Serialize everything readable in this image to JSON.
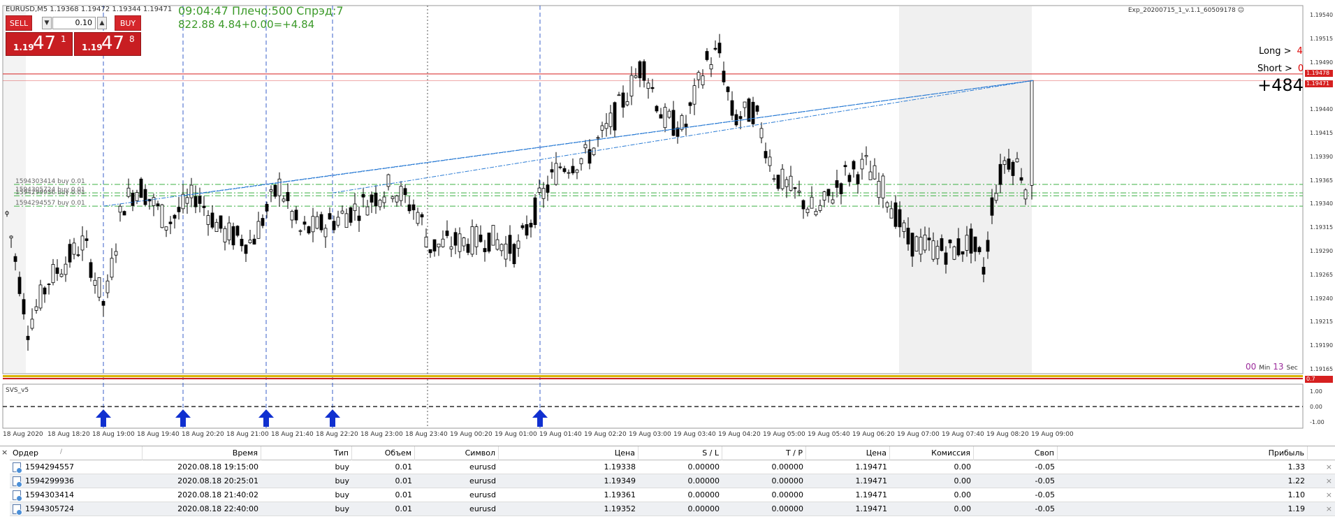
{
  "symbol_header": "EURUSD,M5  1.19368 1.19472 1.19344 1.19471",
  "trade_panel": {
    "sell_label": "SELL",
    "buy_label": "BUY",
    "lot_value": "0.10",
    "sell_price_small": "1.19",
    "sell_price_big": "47",
    "sell_price_sup": "1",
    "buy_price_small": "1.19",
    "buy_price_big": "47",
    "buy_price_sup": "8"
  },
  "info": {
    "line1": "09:04:47 Плечо:500 Спрэд:7",
    "line2": "822.88     4.84+0.00=+4.84"
  },
  "expert_name": "Exp_20200715_1_v.1.1_60509178 ☺",
  "long_label": "Long >",
  "long_count": "4",
  "short_label": "Short >",
  "short_count": "0",
  "total_profit": "+484",
  "timer": {
    "min_value": "00",
    "min_label": "Min",
    "sec_value": "13",
    "sec_label": "Sec"
  },
  "indicator_label": "SVS_v5",
  "order_labels": [
    "1594303414 buy 0.01",
    "1594305724 buy 0.01",
    "1594299936 buy 0.01",
    "1594294557 buy 0.01"
  ],
  "price_axis": [
    "1.19540",
    "1.19515",
    "1.19490",
    "1.19465",
    "1.19440",
    "1.19415",
    "1.19390",
    "1.19365",
    "1.19340",
    "1.19315",
    "1.19290",
    "1.19265",
    "1.19240",
    "1.19215",
    "1.19190",
    "1.19165"
  ],
  "price_tags": [
    "1.19478",
    "1.19471"
  ],
  "indicator_axis": [
    "1.00",
    "0.00",
    "-1.00"
  ],
  "indicator_tag": "0.7",
  "time_axis": [
    "18 Aug 2020",
    "18 Aug 18:20",
    "18 Aug 19:00",
    "18 Aug 19:40",
    "18 Aug 20:20",
    "18 Aug 21:00",
    "18 Aug 21:40",
    "18 Aug 22:20",
    "18 Aug 23:00",
    "18 Aug 23:40",
    "19 Aug 00:20",
    "19 Aug 01:00",
    "19 Aug 01:40",
    "19 Aug 02:20",
    "19 Aug 03:00",
    "19 Aug 03:40",
    "19 Aug 04:20",
    "19 Aug 05:00",
    "19 Aug 05:40",
    "19 Aug 06:20",
    "19 Aug 07:00",
    "19 Aug 07:40",
    "19 Aug 08:20",
    "19 Aug 09:00"
  ],
  "table": {
    "headers": [
      "Ордер",
      "Время",
      "Тип",
      "Объем",
      "Символ",
      "Цена",
      "S / L",
      "T / P",
      "Цена",
      "Комиссия",
      "Своп",
      "Прибыль"
    ],
    "sort_marker": "/",
    "rows": [
      [
        "1594294557",
        "2020.08.18 19:15:00",
        "buy",
        "0.01",
        "eurusd",
        "1.19338",
        "0.00000",
        "0.00000",
        "1.19471",
        "0.00",
        "-0.05",
        "1.33"
      ],
      [
        "1594299936",
        "2020.08.18 20:25:01",
        "buy",
        "0.01",
        "eurusd",
        "1.19349",
        "0.00000",
        "0.00000",
        "1.19471",
        "0.00",
        "-0.05",
        "1.22"
      ],
      [
        "1594303414",
        "2020.08.18 21:40:02",
        "buy",
        "0.01",
        "eurusd",
        "1.19361",
        "0.00000",
        "0.00000",
        "1.19471",
        "0.00",
        "-0.05",
        "1.10"
      ],
      [
        "1594305724",
        "2020.08.18 22:40:00",
        "buy",
        "0.01",
        "eurusd",
        "1.19352",
        "0.00000",
        "0.00000",
        "1.19471",
        "0.00",
        "-0.05",
        "1.19"
      ]
    ],
    "close_glyph": "×",
    "panel_close_glyph": "×"
  },
  "colors": {
    "sell": "#d5262b",
    "info_green": "#3c9a2a",
    "price_line": "#d62020",
    "trend_blue": "#2a7bd4",
    "arrow_blue": "#1030d0"
  }
}
